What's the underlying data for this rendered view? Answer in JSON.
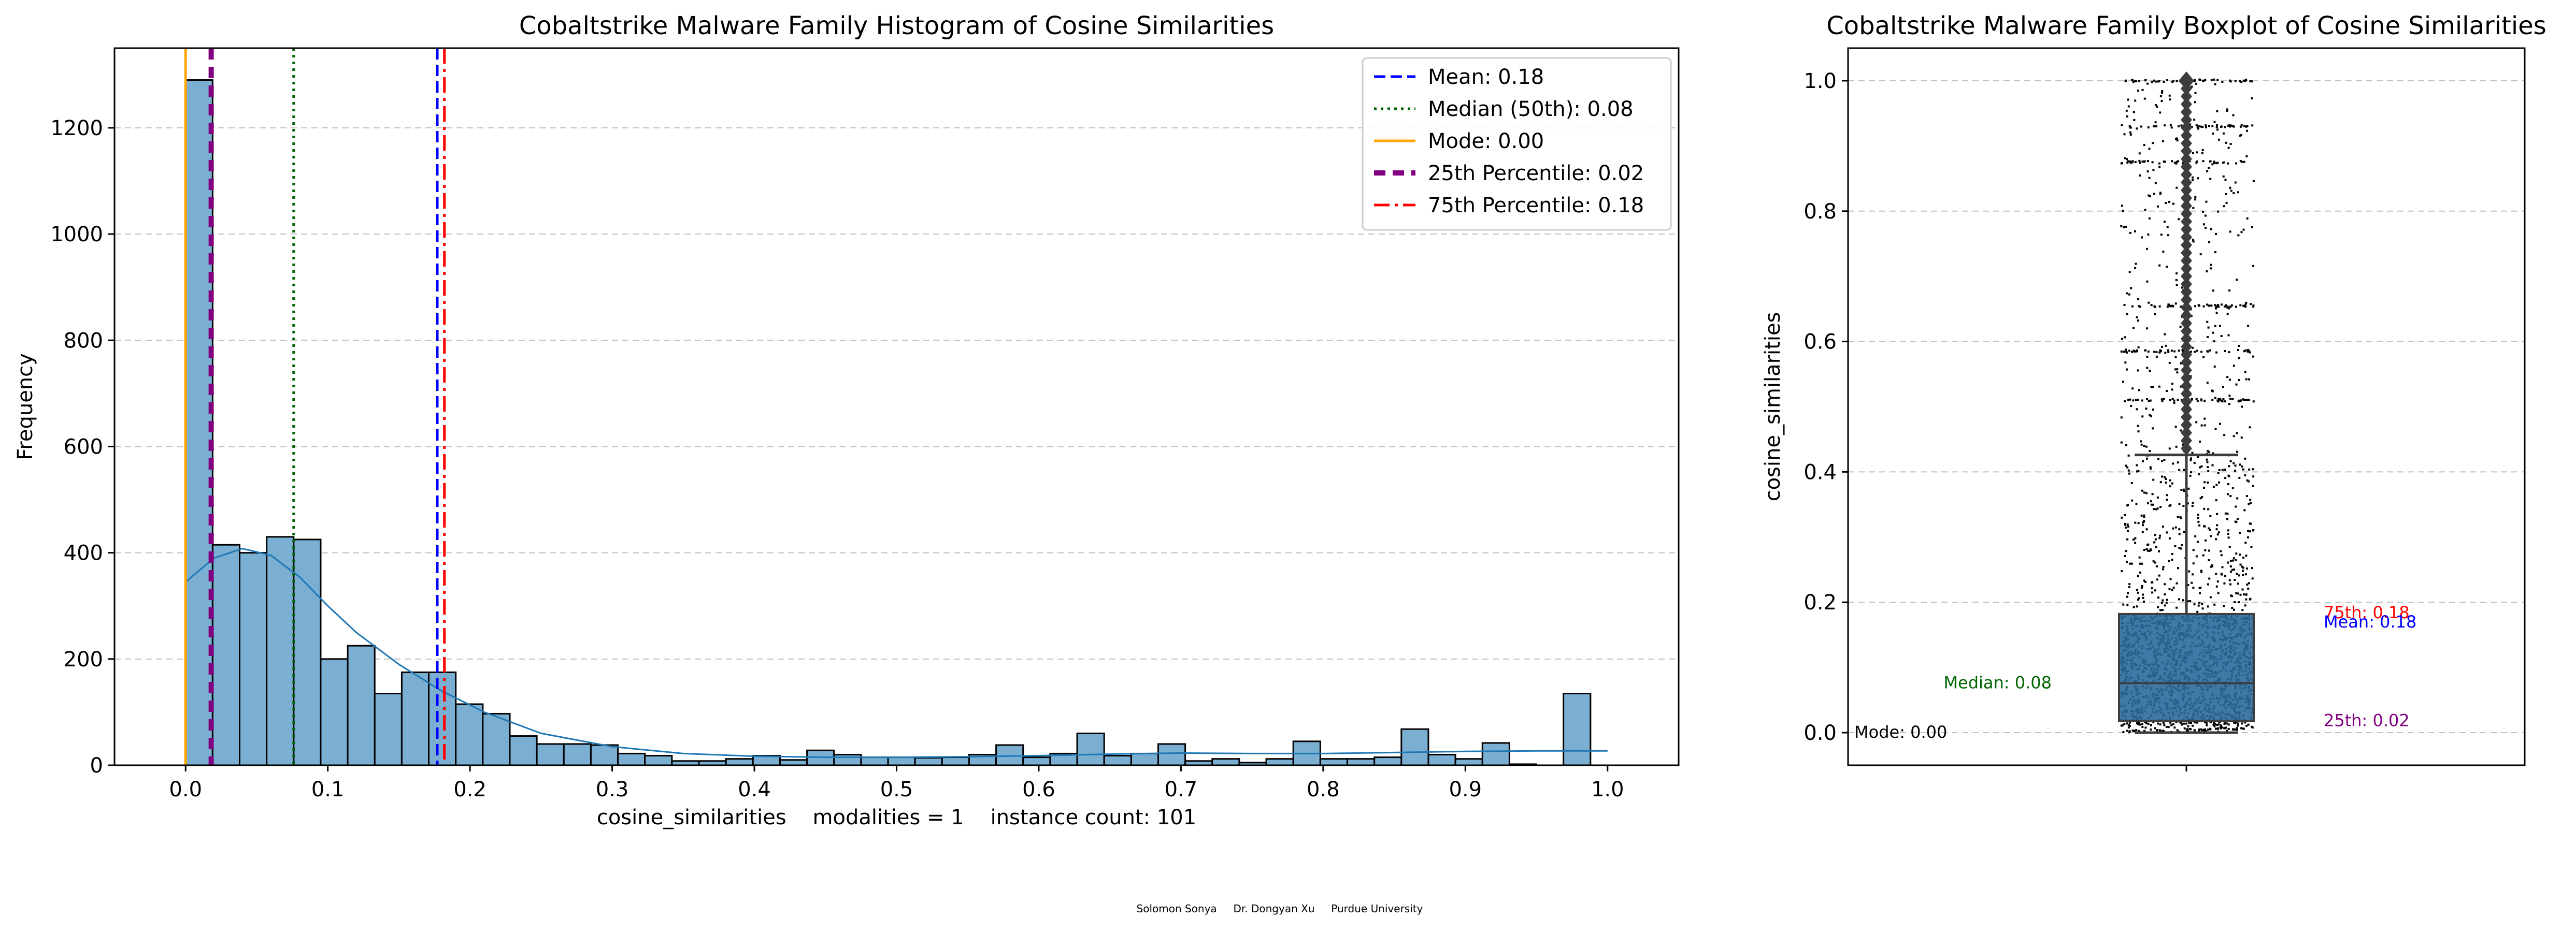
{
  "footer": "Solomon Sonya     Dr. Dongyan Xu     Purdue University",
  "colors": {
    "hist_bar": "#7aafd2",
    "hist_edge": "#000000",
    "kde": "#1f77b4",
    "mean": "#0000ff",
    "median": "#006400",
    "mode": "#ffa500",
    "p25": "#800080",
    "p75": "#ff0000",
    "box": "#2b6a9b",
    "grid": "#c0c0c0"
  },
  "chart_data": [
    {
      "type": "bar",
      "title": "Cobaltstrike Malware Family Histogram of Cosine Similarities",
      "xlabel": "cosine_similarities    modalities = 1    instance count: 101",
      "ylabel": "Frequency",
      "xlim": [
        -0.05,
        1.05
      ],
      "ylim": [
        0,
        1350
      ],
      "xticks": [
        0.0,
        0.1,
        0.2,
        0.3,
        0.4,
        0.5,
        0.6,
        0.7,
        0.8,
        0.9,
        1.0
      ],
      "xtick_labels": [
        "0.0",
        "0.1",
        "0.2",
        "0.3",
        "0.4",
        "0.5",
        "0.6",
        "0.7",
        "0.8",
        "0.9",
        "1.0"
      ],
      "yticks": [
        0,
        200,
        400,
        600,
        800,
        1000,
        1200
      ],
      "ytick_labels": [
        "0",
        "200",
        "400",
        "600",
        "800",
        "1000",
        "1200"
      ],
      "grid": "y",
      "legend_position": "top-right",
      "bin_width": 0.019,
      "bin_start": 0.0,
      "values": [
        1290,
        415,
        400,
        430,
        425,
        200,
        225,
        135,
        175,
        175,
        115,
        97,
        55,
        40,
        40,
        38,
        22,
        18,
        8,
        8,
        12,
        18,
        10,
        28,
        20,
        15,
        15,
        14,
        15,
        20,
        38,
        15,
        22,
        60,
        18,
        22,
        40,
        8,
        12,
        5,
        12,
        45,
        12,
        12,
        15,
        68,
        20,
        12,
        42,
        2,
        0,
        135
      ],
      "kde": {
        "x": [
          0.0,
          0.02,
          0.04,
          0.06,
          0.08,
          0.1,
          0.12,
          0.15,
          0.18,
          0.21,
          0.25,
          0.3,
          0.35,
          0.4,
          0.45,
          0.5,
          0.55,
          0.6,
          0.65,
          0.7,
          0.75,
          0.8,
          0.85,
          0.9,
          0.95,
          1.0
        ],
        "y": [
          345,
          390,
          408,
          395,
          355,
          300,
          250,
          190,
          140,
          100,
          60,
          35,
          22,
          17,
          15,
          15,
          16,
          18,
          21,
          23,
          22,
          22,
          24,
          26,
          27,
          27
        ]
      },
      "reference_lines": [
        {
          "name": "Mean: 0.18",
          "key": "mean",
          "x": 0.177,
          "style": "dashed"
        },
        {
          "name": "Median (50th): 0.08",
          "key": "median",
          "x": 0.076,
          "style": "dotted"
        },
        {
          "name": "Mode: 0.00",
          "key": "mode",
          "x": 0.0,
          "style": "solid"
        },
        {
          "name": "25th Percentile: 0.02",
          "key": "p25",
          "x": 0.018,
          "style": "dashed-thick"
        },
        {
          "name": "75th Percentile: 0.18",
          "key": "p75",
          "x": 0.182,
          "style": "dashdot"
        }
      ]
    },
    {
      "type": "box",
      "title": "Cobaltstrike Malware Family Boxplot of Cosine Similarities",
      "ylabel": "cosine_similarities",
      "ylim": [
        -0.05,
        1.05
      ],
      "yticks": [
        0.0,
        0.2,
        0.4,
        0.6,
        0.8,
        1.0
      ],
      "ytick_labels": [
        "0.0",
        "0.2",
        "0.4",
        "0.6",
        "0.8",
        "1.0"
      ],
      "grid": "y",
      "box": {
        "q1": 0.018,
        "median": 0.076,
        "q3": 0.182,
        "whisker_low": 0.0,
        "whisker_high": 0.426,
        "mean": 0.177
      },
      "outlier_band": [
        0.426,
        1.0
      ],
      "strip_levels": [
        1.0,
        0.93,
        0.875,
        0.655,
        0.585,
        0.51
      ],
      "annotations": [
        {
          "text": "Mode: 0.00",
          "key": "annot_mode",
          "y": 0.0,
          "color_key": "black"
        },
        {
          "text": "Median: 0.08",
          "key": "annot_median",
          "y": 0.076,
          "color_key": "median"
        },
        {
          "text": "25th: 0.02",
          "key": "annot_p25",
          "y": 0.018,
          "color_key": "p25"
        },
        {
          "text": "75th: 0.18",
          "key": "annot_p75",
          "y": 0.182,
          "color_key": "p75"
        },
        {
          "text": "Mean: 0.18",
          "key": "annot_mean",
          "y": 0.177,
          "color_key": "mean"
        }
      ]
    }
  ]
}
